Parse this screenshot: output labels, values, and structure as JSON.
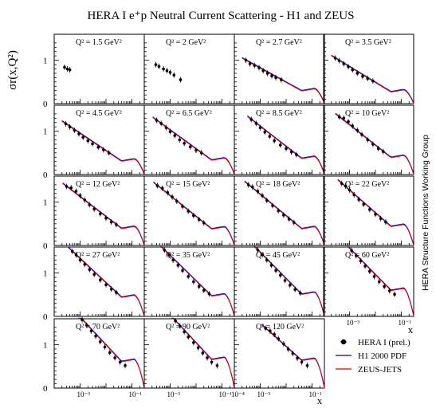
{
  "chart_data": {
    "type": "scatter",
    "title": "HERA I e⁺p Neutral Current Scattering - H1 and ZEUS",
    "ylabel": "σr(x,Q²)",
    "xlabel": "x",
    "side_label": "HERA Structure Functions Working Group",
    "x_scale": "log",
    "xlim": [
      0.0001,
      0.3
    ],
    "ylim": [
      0,
      1.6
    ],
    "y_ticks": [
      "0",
      "1"
    ],
    "x_ticks": [
      "10⁻³",
      "10⁻¹"
    ],
    "x_ticks_bottom_row": [
      "10⁻³",
      "10⁻¹",
      "10⁻⁴"
    ],
    "legend": [
      {
        "label": "HERA I (prel.)",
        "marker": "dot",
        "color": "#000000"
      },
      {
        "label": "H1 2000 PDF",
        "marker": "line",
        "color": "#0000cc"
      },
      {
        "label": "ZEUS-JETS",
        "marker": "line",
        "color": "#dd0000"
      }
    ],
    "panels": [
      {
        "q2": "Q² = 1.5 GeV²",
        "has_curve": false,
        "points": [
          [
            0.00025,
            0.84
          ],
          [
            0.00032,
            0.8
          ],
          [
            0.0004,
            0.78
          ]
        ]
      },
      {
        "q2": "Q² = 2 GeV²",
        "has_curve": false,
        "points": [
          [
            0.00028,
            0.9
          ],
          [
            0.00037,
            0.86
          ],
          [
            0.00055,
            0.8
          ],
          [
            0.00075,
            0.76
          ],
          [
            0.001,
            0.72
          ],
          [
            0.0014,
            0.66
          ],
          [
            0.0025,
            0.55
          ]
        ]
      },
      {
        "q2": "Q² = 2.7 GeV²",
        "has_curve": true,
        "points": [
          [
            0.00028,
            1.0
          ],
          [
            0.0004,
            0.92
          ],
          [
            0.0006,
            0.88
          ],
          [
            0.0009,
            0.83
          ],
          [
            0.0013,
            0.76
          ],
          [
            0.0019,
            0.7
          ],
          [
            0.0028,
            0.64
          ],
          [
            0.004,
            0.6
          ],
          [
            0.0065,
            0.55
          ]
        ]
      },
      {
        "q2": "Q² = 3.5 GeV²",
        "has_curve": true,
        "points": [
          [
            0.00028,
            1.05
          ],
          [
            0.0004,
            0.99
          ],
          [
            0.0006,
            0.92
          ],
          [
            0.0009,
            0.85
          ],
          [
            0.0013,
            0.78
          ],
          [
            0.002,
            0.7
          ],
          [
            0.0032,
            0.63
          ],
          [
            0.005,
            0.58
          ],
          [
            0.008,
            0.52
          ]
        ]
      },
      {
        "q2": "Q² = 4.5 GeV²",
        "has_curve": true,
        "points": [
          [
            0.00028,
            1.17
          ],
          [
            0.0004,
            1.1
          ],
          [
            0.0006,
            1.02
          ],
          [
            0.0009,
            0.94
          ],
          [
            0.0013,
            0.86
          ],
          [
            0.002,
            0.78
          ],
          [
            0.003,
            0.71
          ],
          [
            0.005,
            0.63
          ],
          [
            0.008,
            0.57
          ],
          [
            0.013,
            0.5
          ]
        ]
      },
      {
        "q2": "Q² = 6.5 GeV²",
        "has_curve": true,
        "points": [
          [
            0.0003,
            1.25
          ],
          [
            0.00045,
            1.18
          ],
          [
            0.0007,
            1.08
          ],
          [
            0.001,
            0.99
          ],
          [
            0.0015,
            0.9
          ],
          [
            0.0023,
            0.8
          ],
          [
            0.0035,
            0.72
          ],
          [
            0.006,
            0.64
          ],
          [
            0.01,
            0.56
          ],
          [
            0.016,
            0.5
          ]
        ]
      },
      {
        "q2": "Q² = 8.5 GeV²",
        "has_curve": true,
        "points": [
          [
            0.00045,
            1.27
          ],
          [
            0.0007,
            1.18
          ],
          [
            0.001,
            1.08
          ],
          [
            0.0015,
            0.98
          ],
          [
            0.0023,
            0.88
          ],
          [
            0.0035,
            0.78
          ],
          [
            0.006,
            0.68
          ],
          [
            0.01,
            0.6
          ],
          [
            0.016,
            0.52
          ],
          [
            0.025,
            0.46
          ]
        ]
      },
      {
        "q2": "Q² = 10 GeV²",
        "has_curve": true,
        "points": [
          [
            0.0004,
            1.33
          ],
          [
            0.0006,
            1.3
          ],
          [
            0.0009,
            1.22
          ],
          [
            0.0013,
            1.12
          ],
          [
            0.002,
            1.02
          ],
          [
            0.003,
            0.92
          ],
          [
            0.005,
            0.8
          ],
          [
            0.008,
            0.7
          ],
          [
            0.013,
            0.6
          ],
          [
            0.02,
            0.53
          ]
        ]
      },
      {
        "q2": "Q² = 12 GeV²",
        "has_curve": true,
        "points": [
          [
            0.0003,
            1.36
          ],
          [
            0.00045,
            1.33
          ],
          [
            0.0007,
            1.25
          ],
          [
            0.001,
            1.15
          ],
          [
            0.0015,
            1.05
          ],
          [
            0.0023,
            0.94
          ],
          [
            0.0035,
            0.84
          ],
          [
            0.006,
            0.73
          ],
          [
            0.01,
            0.63
          ],
          [
            0.016,
            0.54
          ],
          [
            0.025,
            0.48
          ]
        ]
      },
      {
        "q2": "Q² = 15 GeV²",
        "has_curve": true,
        "points": [
          [
            0.00032,
            1.38
          ],
          [
            0.0005,
            1.32
          ],
          [
            0.0008,
            1.22
          ],
          [
            0.0012,
            1.12
          ],
          [
            0.0018,
            1.02
          ],
          [
            0.003,
            0.9
          ],
          [
            0.005,
            0.79
          ],
          [
            0.008,
            0.69
          ],
          [
            0.013,
            0.6
          ],
          [
            0.02,
            0.52
          ]
        ]
      },
      {
        "q2": "Q² = 18 GeV²",
        "has_curve": true,
        "points": [
          [
            0.00035,
            1.4
          ],
          [
            0.0005,
            1.35
          ],
          [
            0.0008,
            1.25
          ],
          [
            0.0012,
            1.15
          ],
          [
            0.0018,
            1.04
          ],
          [
            0.003,
            0.92
          ],
          [
            0.005,
            0.8
          ],
          [
            0.008,
            0.7
          ],
          [
            0.013,
            0.61
          ],
          [
            0.02,
            0.53
          ]
        ]
      },
      {
        "q2": "Q² = 22 GeV²",
        "has_curve": true,
        "points": [
          [
            0.0005,
            1.43
          ],
          [
            0.0007,
            1.37
          ],
          [
            0.001,
            1.28
          ],
          [
            0.0015,
            1.17
          ],
          [
            0.0023,
            1.06
          ],
          [
            0.0035,
            0.95
          ],
          [
            0.006,
            0.83
          ],
          [
            0.01,
            0.72
          ],
          [
            0.016,
            0.62
          ],
          [
            0.025,
            0.54
          ]
        ]
      },
      {
        "q2": "Q² = 27 GeV²",
        "has_curve": true,
        "points": [
          [
            0.0005,
            1.5
          ],
          [
            0.0007,
            1.42
          ],
          [
            0.001,
            1.3
          ],
          [
            0.0015,
            1.2
          ],
          [
            0.0023,
            1.08
          ],
          [
            0.0035,
            0.97
          ],
          [
            0.006,
            0.84
          ],
          [
            0.01,
            0.73
          ],
          [
            0.016,
            0.63
          ],
          [
            0.025,
            0.55
          ]
        ]
      },
      {
        "q2": "Q² = 35 GeV²",
        "has_curve": true,
        "points": [
          [
            0.0006,
            1.53
          ],
          [
            0.0009,
            1.42
          ],
          [
            0.0013,
            1.3
          ],
          [
            0.002,
            1.18
          ],
          [
            0.003,
            1.06
          ],
          [
            0.005,
            0.92
          ],
          [
            0.008,
            0.8
          ],
          [
            0.013,
            0.69
          ],
          [
            0.02,
            0.6
          ],
          [
            0.032,
            0.52
          ]
        ]
      },
      {
        "q2": "Q² = 45 GeV²",
        "has_curve": true,
        "points": [
          [
            0.0008,
            1.53
          ],
          [
            0.0012,
            1.42
          ],
          [
            0.0018,
            1.3
          ],
          [
            0.0027,
            1.18
          ],
          [
            0.004,
            1.06
          ],
          [
            0.006,
            0.95
          ],
          [
            0.009,
            0.83
          ],
          [
            0.014,
            0.72
          ],
          [
            0.022,
            0.62
          ],
          [
            0.035,
            0.54
          ]
        ]
      },
      {
        "q2": "Q² = 60 GeV²",
        "has_curve": true,
        "points": [
          [
            0.0012,
            1.52
          ],
          [
            0.0018,
            1.4
          ],
          [
            0.0027,
            1.28
          ],
          [
            0.004,
            1.16
          ],
          [
            0.006,
            1.04
          ],
          [
            0.009,
            0.92
          ],
          [
            0.014,
            0.8
          ],
          [
            0.022,
            0.69
          ],
          [
            0.035,
            0.59
          ],
          [
            0.055,
            0.51
          ]
        ]
      },
      {
        "q2": "Q² = 70 GeV²",
        "has_curve": true,
        "points": [
          [
            0.0012,
            1.58
          ],
          [
            0.0018,
            1.45
          ],
          [
            0.0027,
            1.32
          ],
          [
            0.004,
            1.2
          ],
          [
            0.006,
            1.07
          ],
          [
            0.009,
            0.95
          ],
          [
            0.014,
            0.82
          ],
          [
            0.022,
            0.7
          ],
          [
            0.035,
            0.6
          ],
          [
            0.055,
            0.52
          ]
        ]
      },
      {
        "q2": "Q² = 90 GeV²",
        "has_curve": true,
        "points": [
          [
            0.0016,
            1.55
          ],
          [
            0.0024,
            1.43
          ],
          [
            0.0035,
            1.3
          ],
          [
            0.005,
            1.18
          ],
          [
            0.008,
            1.05
          ],
          [
            0.012,
            0.93
          ],
          [
            0.018,
            0.81
          ],
          [
            0.027,
            0.7
          ],
          [
            0.04,
            0.6
          ],
          [
            0.065,
            0.52
          ]
        ]
      },
      {
        "q2": "Q² = 120 GeV²",
        "has_curve": true,
        "points": [
          [
            0.0016,
            1.38
          ],
          [
            0.0024,
            1.32
          ],
          [
            0.0035,
            1.24
          ],
          [
            0.005,
            1.14
          ],
          [
            0.008,
            1.02
          ],
          [
            0.012,
            0.9
          ],
          [
            0.018,
            0.8
          ],
          [
            0.027,
            0.69
          ],
          [
            0.04,
            0.6
          ],
          [
            0.065,
            0.52
          ]
        ]
      }
    ]
  }
}
